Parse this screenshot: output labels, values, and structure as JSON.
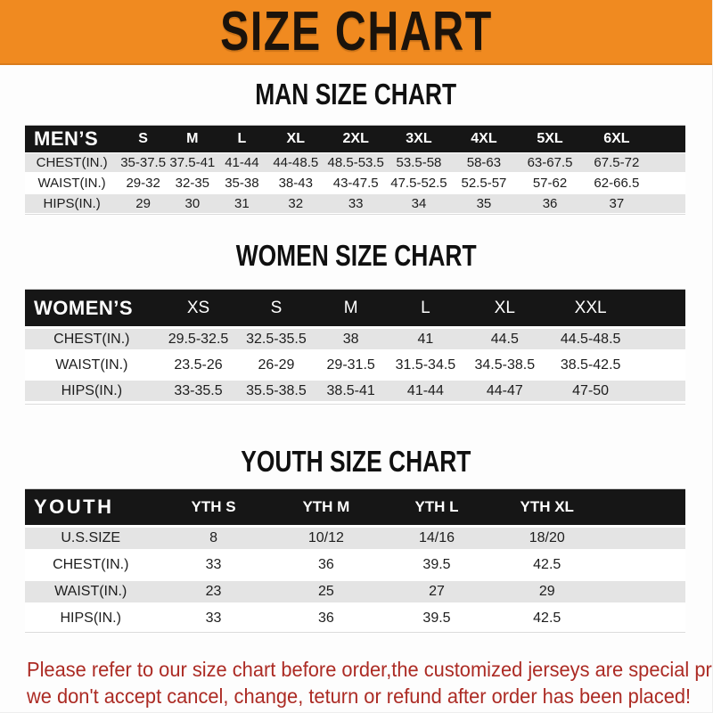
{
  "banner": {
    "title": "SIZE CHART"
  },
  "colors": {
    "banner_orange": "#F08A20",
    "banner_edge": "#D97B1C",
    "header_bar_black": "#161616",
    "row_gray": "#E4E4E4",
    "note_red": "#AC2B24"
  },
  "men_chart": {
    "heading": "MAN SIZE CHART",
    "label": "MEN’S",
    "columns": [
      "S",
      "M",
      "L",
      "XL",
      "2XL",
      "3XL",
      "4XL",
      "5XL",
      "6XL"
    ],
    "rows": [
      {
        "label": "CHEST(IN.)",
        "values": [
          "35-37.5",
          "37.5-41",
          "41-44",
          "44-48.5",
          "48.5-53.5",
          "53.5-58",
          "58-63",
          "63-67.5",
          "67.5-72"
        ]
      },
      {
        "label": "WAIST(IN.)",
        "values": [
          "29-32",
          "32-35",
          "35-38",
          "38-43",
          "43-47.5",
          "47.5-52.5",
          "52.5-57",
          "57-62",
          "62-66.5"
        ]
      },
      {
        "label": "HIPS(IN.)",
        "values": [
          "29",
          "30",
          "31",
          "32",
          "33",
          "34",
          "35",
          "36",
          "37"
        ]
      }
    ]
  },
  "women_chart": {
    "heading": "WOMEN SIZE CHART",
    "label": "WOMEN’S",
    "columns": [
      "XS",
      "S",
      "M",
      "L",
      "XL",
      "XXL"
    ],
    "rows": [
      {
        "label": "CHEST(IN.)",
        "values": [
          "29.5-32.5",
          "32.5-35.5",
          "38",
          "41",
          "44.5",
          "44.5-48.5"
        ]
      },
      {
        "label": "WAIST(IN.)",
        "values": [
          "23.5-26",
          "26-29",
          "29-31.5",
          "31.5-34.5",
          "34.5-38.5",
          "38.5-42.5"
        ]
      },
      {
        "label": "HIPS(IN.)",
        "values": [
          "33-35.5",
          "35.5-38.5",
          "38.5-41",
          "41-44",
          "44-47",
          "47-50"
        ]
      }
    ]
  },
  "youth_chart": {
    "heading": "YOUTH SIZE CHART",
    "label": "YOUTH",
    "columns": [
      "YTH S",
      "YTH M",
      "YTH L",
      "YTH XL"
    ],
    "rows": [
      {
        "label": "U.S.SIZE",
        "values": [
          "8",
          "10/12",
          "14/16",
          "18/20"
        ]
      },
      {
        "label": "CHEST(IN.)",
        "values": [
          "33",
          "36",
          "39.5",
          "42.5"
        ]
      },
      {
        "label": "WAIST(IN.)",
        "values": [
          "23",
          "25",
          "27",
          "29"
        ]
      },
      {
        "label": "HIPS(IN.)",
        "values": [
          "33",
          "36",
          "39.5",
          "42.5"
        ]
      }
    ]
  },
  "footer_note": {
    "line1": "Please refer to our size chart before order,the customized jerseys are special products,",
    "line2": "we don't accept cancel, change, teturn or refund after order has been placed!"
  }
}
